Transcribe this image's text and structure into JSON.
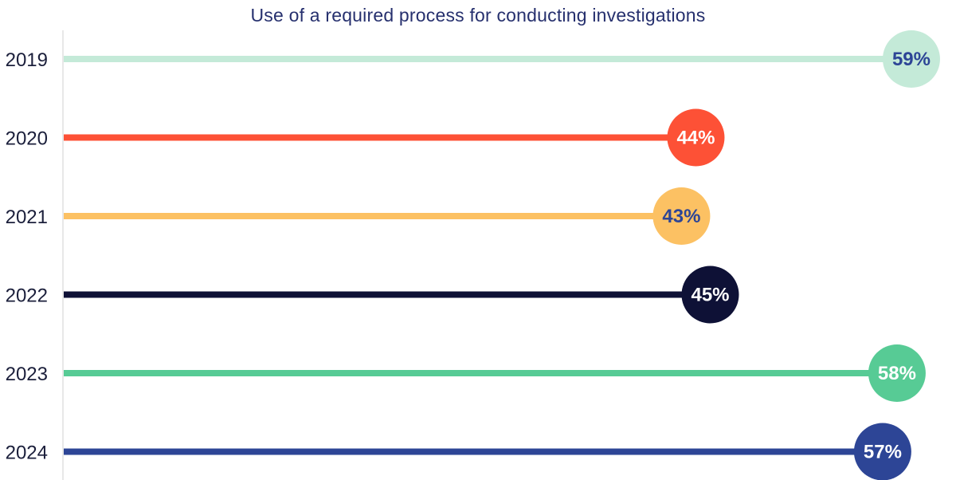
{
  "chart_data": {
    "type": "lollipop",
    "title": "Use of a required process for conducting investigations",
    "categories": [
      "2019",
      "2020",
      "2021",
      "2022",
      "2023",
      "2024"
    ],
    "values": [
      59,
      44,
      43,
      45,
      58,
      57
    ],
    "value_labels": [
      "59%",
      "44%",
      "43%",
      "45%",
      "58%",
      "57%"
    ],
    "unit": "%",
    "xlabel": "",
    "ylabel": "",
    "xlim": [
      0,
      60
    ],
    "grid": false,
    "legend": "none",
    "colors": [
      "#c4ead8",
      "#fd5136",
      "#fcc163",
      "#0e1136",
      "#57cb95",
      "#2d4596"
    ],
    "label_colors": [
      "#2d4596",
      "#ffffff",
      "#2d4596",
      "#ffffff",
      "#ffffff",
      "#ffffff"
    ]
  }
}
